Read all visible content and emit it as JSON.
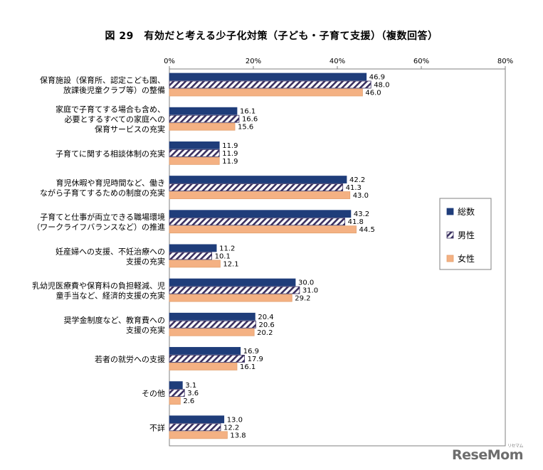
{
  "chart_data": {
    "type": "bar",
    "orientation": "horizontal",
    "title": "図 29　有効だと考える少子化対策（子ども・子育て支援）（複数回答）",
    "x_ticks": [
      "0%",
      "20%",
      "40%",
      "60%",
      "80%"
    ],
    "xlim": [
      0,
      80
    ],
    "categories": [
      [
        "保育施設（保育所、認定こども園、",
        "放課後児童クラブ等）の整備"
      ],
      [
        "家庭で子育てする場合も含め、",
        "必要とするすべての家庭への",
        "保育サービスの充実"
      ],
      [
        "子育てに関する相談体制の充実"
      ],
      [
        "育児休暇や育児時間など、働き",
        "ながら子育てするための制度の充実"
      ],
      [
        "子育てと仕事が両立できる職場環境",
        "（ワークライフバランスなど）の推進"
      ],
      [
        "妊産婦への支援、不妊治療への",
        "支援の充実"
      ],
      [
        "乳幼児医療費や保育料の負担軽減、児",
        "童手当など、経済的支援の充実"
      ],
      [
        "奨学金制度など、教育費への",
        "支援の充実"
      ],
      [
        "若者の就労への支援"
      ],
      [
        "その他"
      ],
      [
        "不詳"
      ]
    ],
    "series": [
      {
        "name": "総数",
        "values": [
          46.9,
          16.1,
          11.9,
          42.2,
          43.2,
          11.2,
          30.0,
          20.4,
          16.9,
          3.1,
          13.0
        ],
        "labels": [
          "46.9",
          "16.1",
          "11.9",
          "42.2",
          "43.2",
          "11.2",
          "30.0",
          "20.4",
          "16.9",
          "3.1",
          "13.0"
        ],
        "color": "#1f3d7a"
      },
      {
        "name": "男性",
        "values": [
          48.0,
          16.6,
          11.9,
          41.3,
          41.8,
          10.1,
          31.0,
          20.6,
          17.9,
          3.6,
          12.2
        ],
        "labels": [
          "48.0",
          "16.6",
          "11.9",
          "41.3",
          "41.8",
          "10.1",
          "31.0",
          "20.6",
          "17.9",
          "3.6",
          "12.2"
        ],
        "color": "#3a3060"
      },
      {
        "name": "女性",
        "values": [
          46.0,
          15.6,
          11.9,
          43.0,
          44.5,
          12.1,
          29.2,
          20.2,
          16.1,
          2.6,
          13.8
        ],
        "labels": [
          "46.0",
          "15.6",
          "11.9",
          "43.0",
          "44.5",
          "12.1",
          "29.2",
          "20.2",
          "16.1",
          "2.6",
          "13.8"
        ],
        "color": "#f4b183"
      }
    ],
    "legend_position": "right"
  },
  "watermark": {
    "text": "ReseMom",
    "sub": "リセマム"
  }
}
